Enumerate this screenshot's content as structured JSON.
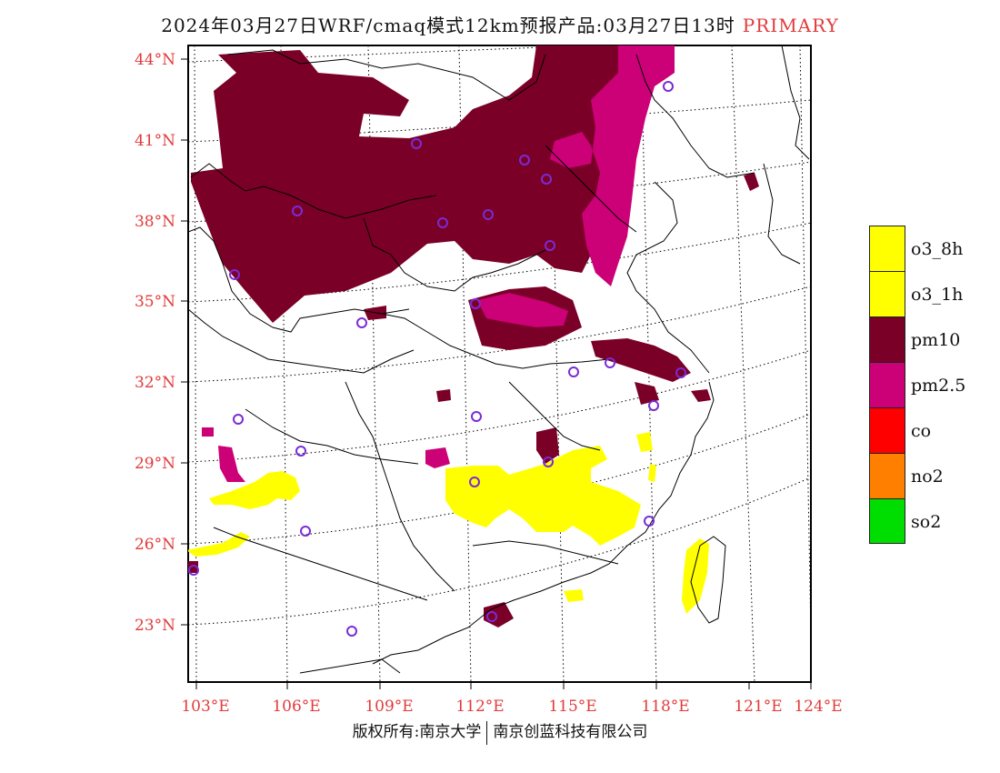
{
  "title": "2024年03月27日WRF/cmaq模式12km预报产品:03月27日13时",
  "title_tag": "PRIMARY",
  "lat_labels": [
    "44°N",
    "41°N",
    "38°N",
    "35°N",
    "32°N",
    "29°N",
    "26°N",
    "23°N"
  ],
  "lon_labels": [
    "103°E",
    "106°E",
    "109°E",
    "112°E",
    "115°E",
    "118°E",
    "121°E",
    "124°E"
  ],
  "legend": [
    {
      "label": "o3_8h",
      "color": "#ffff00"
    },
    {
      "label": "o3_1h",
      "color": "#ffff00"
    },
    {
      "label": "pm10",
      "color": "#7b0028"
    },
    {
      "label": "pm2.5",
      "color": "#cc0077"
    },
    {
      "label": "co",
      "color": "#ff0000"
    },
    {
      "label": "no2",
      "color": "#ff7f00"
    },
    {
      "label": "so2",
      "color": "#00dd00"
    }
  ],
  "copyright_left": "版权所有:南京大学",
  "copyright_right": "南京创蓝科技有限公司",
  "colors": {
    "pm10": "#7b0028",
    "pm25": "#cc0077",
    "o3": "#ffff00",
    "station": "#7a2bd6",
    "label": "#e33a3a"
  }
}
